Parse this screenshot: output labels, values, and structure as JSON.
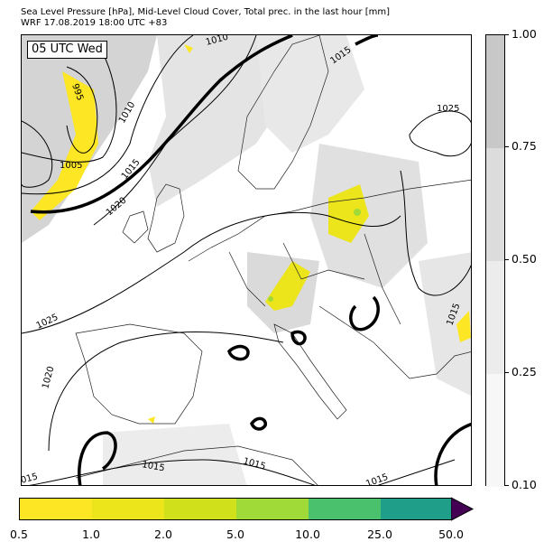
{
  "title_line1": "Sea Level Pressure [hPa], Mid-Level Cloud Cover, Total prec. in the last hour [mm]",
  "title_line2": "WRF 17.08.2019 18:00 UTC +83",
  "time_label": "05 UTC Wed",
  "isobar_labels": {
    "l995": "995",
    "l1005": "1005",
    "l1010a": "1010",
    "l1010b": "1010",
    "l1015a": "1015",
    "l1015b": "1015",
    "l1015c": "1015",
    "l1015d": "1015",
    "l1015e": "1015",
    "l1015f": "1015",
    "l1015g": "015",
    "l1020a": "1020",
    "l1020b": "1020",
    "l1025a": "1025",
    "l1025b": "1025"
  },
  "cloud_colorbar": {
    "ticks": [
      "1.00",
      "0.75",
      "0.50",
      "0.25",
      "0.10"
    ],
    "colors": [
      "#c8c8c8",
      "#dcdcdc",
      "#ececec",
      "#f7f7f7"
    ]
  },
  "precip_colorbar": {
    "ticks": [
      "0.5",
      "1.0",
      "2.0",
      "5.0",
      "10.0",
      "25.0",
      "50.0"
    ],
    "colors": [
      "#fde725",
      "#ece51b",
      "#d0e11c",
      "#a0da39",
      "#4ac16d",
      "#1f9e89",
      "#365c8d"
    ],
    "extend_color": "#440154"
  }
}
